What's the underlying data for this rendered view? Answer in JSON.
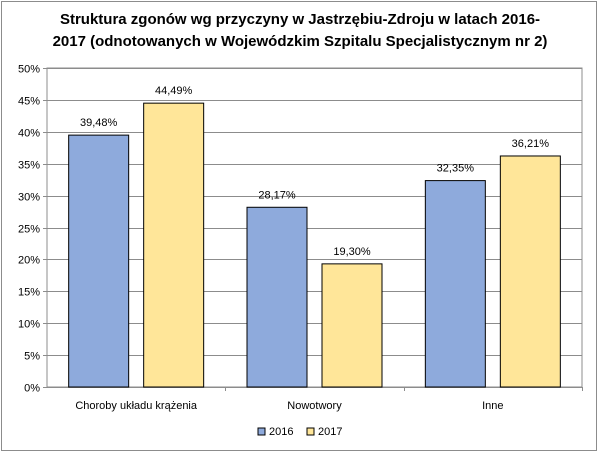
{
  "chart_data": {
    "type": "bar",
    "title": "Struktura zgonów wg przyczyny w Jastrzębiu-Zdroju w latach 2016-2017 (odnotowanych w Wojewódzkim Szpitalu Specjalistycznym nr 2)",
    "title_lines": [
      "Struktura zgonów wg przyczyny w Jastrzębiu-Zdroju w latach 2016-",
      "2017 (odnotowanych w Wojewódzkim Szpitalu Specjalistycznym nr 2)"
    ],
    "categories": [
      "Choroby układu krążenia",
      "Nowotwory",
      "Inne"
    ],
    "series": [
      {
        "name": "2016",
        "values": [
          39.48,
          28.17,
          32.35
        ],
        "labels": [
          "39,48%",
          "28,17%",
          "32,35%"
        ],
        "color": "#8eaadc"
      },
      {
        "name": "2017",
        "values": [
          44.49,
          19.3,
          36.21
        ],
        "labels": [
          "44,49%",
          "19,30%",
          "36,21%"
        ],
        "color": "#ffe699"
      }
    ],
    "ylim": [
      0,
      50
    ],
    "yticks": [
      "0%",
      "5%",
      "10%",
      "15%",
      "20%",
      "25%",
      "30%",
      "35%",
      "40%",
      "45%",
      "50%"
    ],
    "grid": true,
    "legend_position": "bottom"
  }
}
